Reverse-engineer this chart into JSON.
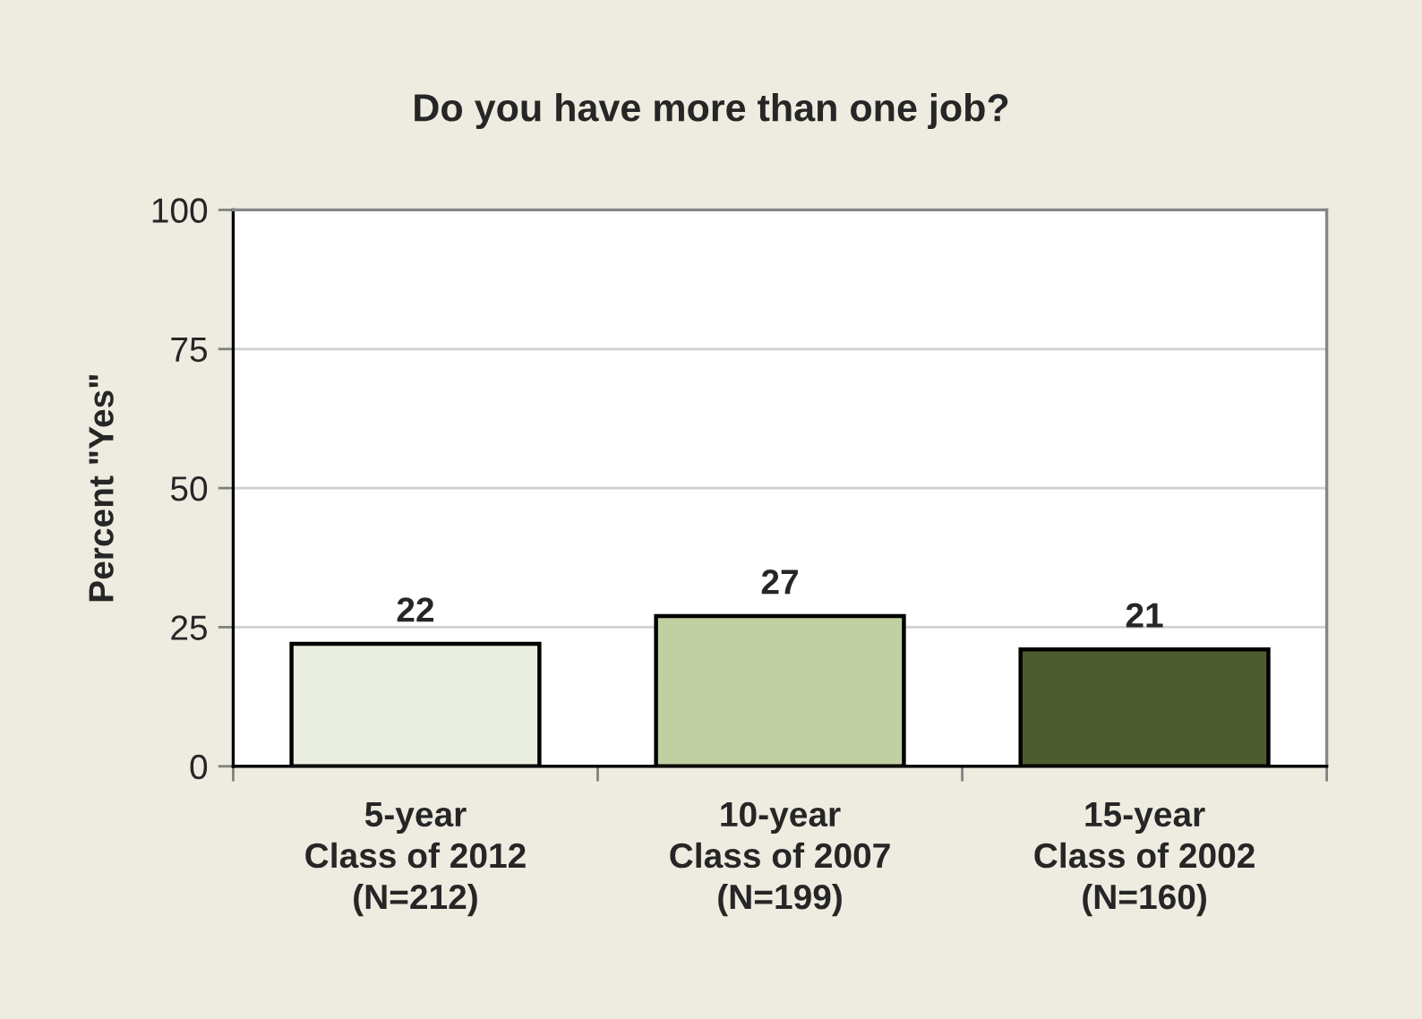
{
  "chart_data": {
    "type": "bar",
    "title": "Do you have more than one job?",
    "ylabel": "Percent \"Yes\"",
    "categories": [
      "5-year\nClass of 2012\n(N=212)",
      "10-year\nClass of 2007\n(N=199)",
      "15-year\nClass of 2002\n(N=160)"
    ],
    "values": [
      22,
      27,
      21
    ],
    "colors": [
      "#ebf0de",
      "#c4d79b",
      "#4f6228"
    ],
    "ylim": [
      0,
      100
    ],
    "yticks": [
      0,
      25,
      50,
      75,
      100
    ],
    "grid": "y",
    "data_labels": true
  }
}
